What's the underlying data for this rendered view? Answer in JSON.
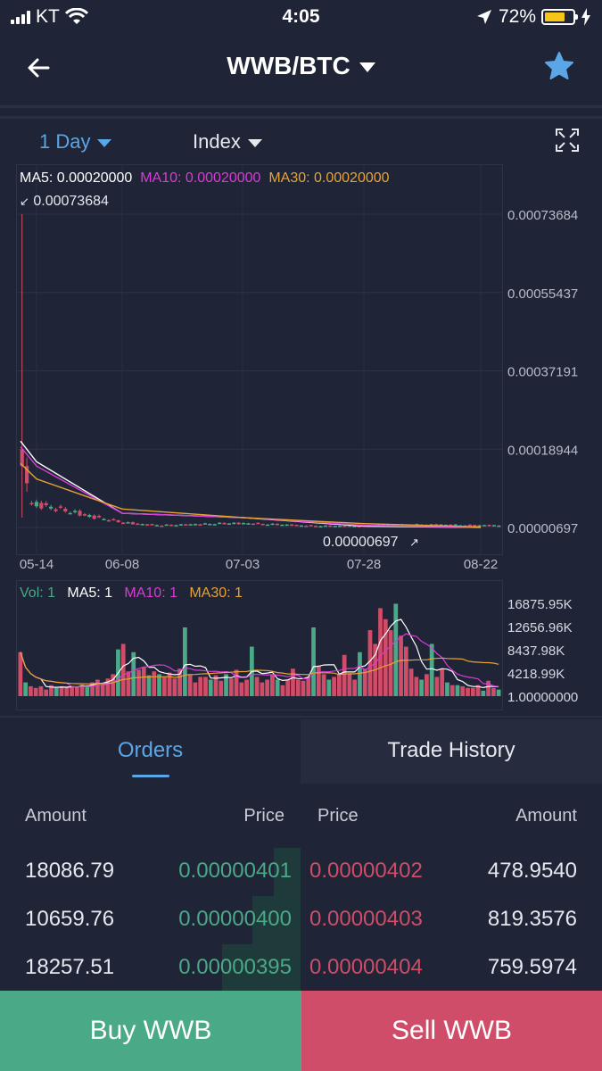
{
  "status_bar": {
    "carrier": "KT",
    "time": "4:05",
    "battery": "72%"
  },
  "header": {
    "title": "WWB/BTC"
  },
  "toolbar": {
    "interval": "1 Day",
    "indicator": "Index"
  },
  "colors": {
    "bg": "#1f2436",
    "accent": "#5aa6e6",
    "up": "#4aa987",
    "down": "#cf4d68",
    "ma5": "#ffffff",
    "ma10": "#d83cd6",
    "ma30": "#e6a336"
  },
  "price_chart": {
    "legend": {
      "ma5": "MA5: 0.00020000",
      "ma10": "MA10: 0.00020000",
      "ma30": "MA30: 0.00020000",
      "high_marker": "0.00073684",
      "low_marker": "0.00000697"
    },
    "y_ticks": [
      "0.00073684",
      "0.00055437",
      "0.00037191",
      "0.00018944",
      "0.00000697"
    ],
    "x_ticks": [
      "05-14",
      "06-08",
      "07-03",
      "07-28",
      "08-22"
    ]
  },
  "volume_chart": {
    "legend": {
      "vol": "Vol: 1",
      "ma5": "MA5: 1",
      "ma10": "MA10: 1",
      "ma30": "MA30: 1"
    },
    "y_ticks": [
      "16875.95K",
      "12656.96K",
      "8437.98K",
      "4218.99K",
      "1.00000000"
    ]
  },
  "chart_data": [
    {
      "type": "line",
      "title": "",
      "x_ticks": [
        "05-14",
        "06-08",
        "07-03",
        "07-28",
        "08-22"
      ],
      "ylim": [
        6.97e-06,
        0.00073684
      ],
      "series": [
        {
          "name": "MA5",
          "x": [
            "05-14",
            "06-08",
            "07-03",
            "07-28",
            "08-22"
          ],
          "values": [
            0.00016,
            4e-05,
            3e-05,
            1e-05,
            7e-06
          ]
        },
        {
          "name": "MA10",
          "x": [
            "05-14",
            "06-08",
            "07-03",
            "07-28",
            "08-22"
          ],
          "values": [
            0.00015,
            4e-05,
            3e-05,
            1.2e-05,
            7e-06
          ]
        },
        {
          "name": "MA30",
          "x": [
            "05-14",
            "06-08",
            "07-03",
            "07-28",
            "08-22"
          ],
          "values": [
            0.00012,
            5e-05,
            3e-05,
            1.6e-05,
            8e-06
          ]
        }
      ],
      "high": 0.00073684,
      "low": 6.97e-06
    },
    {
      "type": "bar",
      "title": "",
      "ylim": [
        1,
        16875950
      ],
      "y_unit": "K",
      "values": [
        8000,
        2500,
        1800,
        1500,
        1800,
        1200,
        2000,
        1500,
        1800,
        1600,
        1700,
        1800,
        2100,
        2000,
        2500,
        3000,
        2200,
        3200,
        4000,
        8500,
        9500,
        4500,
        8000,
        4800,
        5200,
        3800,
        4500,
        4000,
        3500,
        4300,
        3200,
        5000,
        12500,
        4000,
        2500,
        3500,
        3500,
        3000,
        3800,
        2800,
        4000,
        3200,
        4800,
        2500,
        3000,
        9000,
        3500,
        2500,
        3000,
        3800,
        3000,
        2000,
        3000,
        5000,
        3000,
        2800,
        3500,
        12500,
        5500,
        4000,
        3000,
        3500,
        4000,
        7500,
        4000,
        3000,
        8000,
        5000,
        12000,
        9500,
        16000,
        14000,
        12000,
        16800,
        11000,
        9000,
        5000,
        3500,
        3000,
        4000,
        9500,
        3500,
        5000,
        2500,
        2000,
        2000,
        1800,
        1500,
        1500,
        2000,
        1000,
        2800,
        1500,
        1200
      ],
      "up_indices": [
        1,
        7,
        13,
        19,
        22,
        25,
        27,
        32,
        37,
        40,
        45,
        50,
        57,
        60,
        66,
        73,
        78,
        80,
        83,
        85,
        90,
        93
      ]
    }
  ],
  "orders": {
    "tabs": {
      "orders": "Orders",
      "trade_history": "Trade History"
    },
    "columns": {
      "buy_amount": "Amount",
      "buy_price": "Price",
      "sell_price": "Price",
      "sell_amount": "Amount"
    },
    "rows": [
      {
        "buy_amount": "18086.79",
        "buy_price": "0.00000401",
        "sell_price": "0.00000402",
        "sell_amount": "478.9540",
        "buy_depth": 0.09,
        "sell_depth": 0.0
      },
      {
        "buy_amount": "10659.76",
        "buy_price": "0.00000400",
        "sell_price": "0.00000403",
        "sell_amount": "819.3576",
        "buy_depth": 0.16,
        "sell_depth": 0.0
      },
      {
        "buy_amount": "18257.51",
        "buy_price": "0.00000395",
        "sell_price": "0.00000404",
        "sell_amount": "759.5974",
        "buy_depth": 0.26,
        "sell_depth": 0.0
      }
    ]
  },
  "actions": {
    "buy": "Buy WWB",
    "sell": "Sell WWB"
  }
}
